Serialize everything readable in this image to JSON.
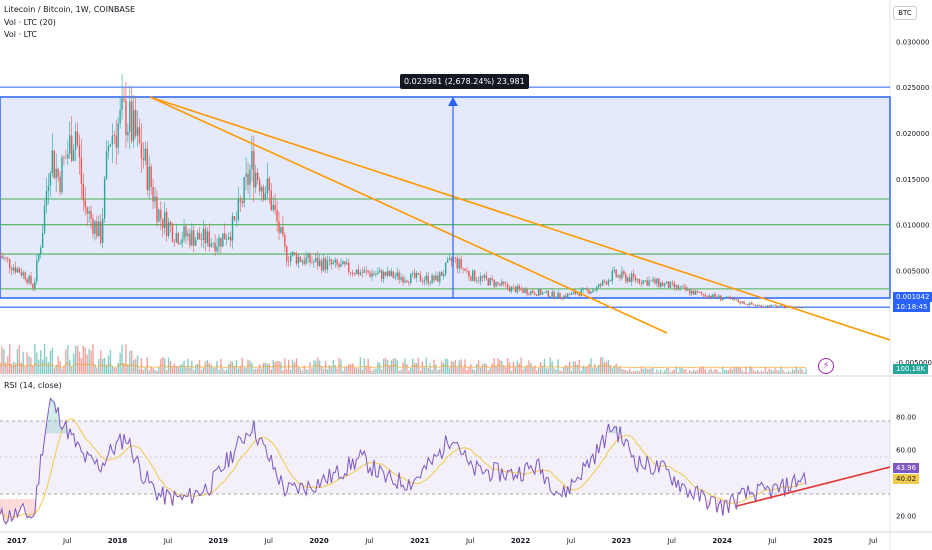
{
  "header": {
    "symbol_line": "Litecoin / Bitcoin, 1W, COINBASE",
    "indicator_1": "Vol · LTC (20)",
    "indicator_2": "Vol · LTC"
  },
  "currency_badge": "BTC",
  "measure_tool": {
    "label": "0.023981 (2,678.24%) 23,981"
  },
  "price_axis": {
    "labels": [
      "0.030000",
      "0.025000",
      "0.020000",
      "0.015000",
      "0.010000",
      "0.005000",
      "-0.005000"
    ]
  },
  "price_tags": {
    "last_price": "0.001042",
    "countdown": "10:18:45",
    "volume": "100.18K"
  },
  "rsi_panel": {
    "title": "RSI (14, close)",
    "axis_labels": [
      "80.00",
      "60.00",
      "20.00"
    ],
    "rsi_value": "43.96",
    "rsi_ma_value": "40.02"
  },
  "time_axis": {
    "labels": [
      "2017",
      "Jul",
      "2018",
      "Jul",
      "2019",
      "Jul",
      "2020",
      "Jul",
      "2021",
      "Jul",
      "2022",
      "Jul",
      "2023",
      "Jul",
      "2024",
      "Jul",
      "2025",
      "Jul"
    ]
  },
  "colors": {
    "up": "#26a69a",
    "down": "#ef5350",
    "box_fill": "#dfe6fb",
    "box_line": "#2962ff",
    "support_line": "#4caf50",
    "trend_line": "#ff9800",
    "rsi_line": "#7e57c2",
    "rsi_ma": "#f2c94c",
    "rsi_trend": "#e53935"
  },
  "chart_data": {
    "type": "candlestick",
    "y_range": [
      -0.0065,
      0.0345
    ],
    "time_range": [
      "2016-11",
      "2025-09"
    ],
    "levels": [
      0.025,
      0.0128,
      0.01,
      0.0068,
      0.003,
      0.001
    ],
    "weekly_close_path": [
      [
        "2016-11",
        0.0066
      ],
      [
        "2017-02",
        0.0045
      ],
      [
        "2017-03",
        0.0032
      ],
      [
        "2017-04",
        0.009
      ],
      [
        "2017-05",
        0.018
      ],
      [
        "2017-06",
        0.015
      ],
      [
        "2017-08",
        0.0205
      ],
      [
        "2017-09",
        0.012
      ],
      [
        "2017-11",
        0.0088
      ],
      [
        "2017-12",
        0.0195
      ],
      [
        "2018-02",
        0.022
      ],
      [
        "2018-04",
        0.0175
      ],
      [
        "2018-06",
        0.011
      ],
      [
        "2018-08",
        0.009
      ],
      [
        "2018-11",
        0.0085
      ],
      [
        "2019-01",
        0.0082
      ],
      [
        "2019-03",
        0.01
      ],
      [
        "2019-05",
        0.0165
      ],
      [
        "2019-07",
        0.0135
      ],
      [
        "2019-09",
        0.0068
      ],
      [
        "2019-12",
        0.006
      ],
      [
        "2020-03",
        0.0055
      ],
      [
        "2020-06",
        0.0048
      ],
      [
        "2020-09",
        0.0045
      ],
      [
        "2020-12",
        0.0042
      ],
      [
        "2021-03",
        0.004
      ],
      [
        "2021-05",
        0.0062
      ],
      [
        "2021-07",
        0.0045
      ],
      [
        "2021-12",
        0.003
      ],
      [
        "2022-06",
        0.0022
      ],
      [
        "2022-10",
        0.003
      ],
      [
        "2022-12",
        0.0045
      ],
      [
        "2023-06",
        0.0035
      ],
      [
        "2023-10",
        0.0025
      ],
      [
        "2024-01",
        0.002
      ],
      [
        "2024-05",
        0.0012
      ],
      [
        "2024-10",
        0.001
      ],
      [
        "2024-11",
        0.0011
      ]
    ],
    "rsi": {
      "y_range": [
        10,
        95
      ],
      "overbought": 70,
      "oversold": 30,
      "path": [
        [
          "2016-11",
          19
        ],
        [
          "2017-02",
          22
        ],
        [
          "2017-03",
          18
        ],
        [
          "2017-04",
          60
        ],
        [
          "2017-05",
          90
        ],
        [
          "2017-07",
          72
        ],
        [
          "2017-09",
          55
        ],
        [
          "2017-11",
          50
        ],
        [
          "2017-12",
          58
        ],
        [
          "2018-02",
          68
        ],
        [
          "2018-04",
          45
        ],
        [
          "2018-06",
          32
        ],
        [
          "2018-09",
          30
        ],
        [
          "2018-12",
          38
        ],
        [
          "2019-03",
          60
        ],
        [
          "2019-05",
          75
        ],
        [
          "2019-07",
          55
        ],
        [
          "2019-09",
          35
        ],
        [
          "2019-12",
          38
        ],
        [
          "2020-03",
          45
        ],
        [
          "2020-06",
          55
        ],
        [
          "2020-09",
          42
        ],
        [
          "2020-12",
          40
        ],
        [
          "2021-03",
          55
        ],
        [
          "2021-05",
          70
        ],
        [
          "2021-07",
          48
        ],
        [
          "2021-12",
          45
        ],
        [
          "2022-03",
          50
        ],
        [
          "2022-06",
          32
        ],
        [
          "2022-10",
          58
        ],
        [
          "2022-12",
          75
        ],
        [
          "2023-03",
          52
        ],
        [
          "2023-06",
          48
        ],
        [
          "2023-09",
          35
        ],
        [
          "2024-01",
          25
        ],
        [
          "2024-04",
          33
        ],
        [
          "2024-08",
          36
        ],
        [
          "2024-11",
          44
        ]
      ],
      "trendline": [
        [
          "2024-01",
          23.5
        ],
        [
          "2025-09",
          43.96
        ]
      ]
    }
  }
}
